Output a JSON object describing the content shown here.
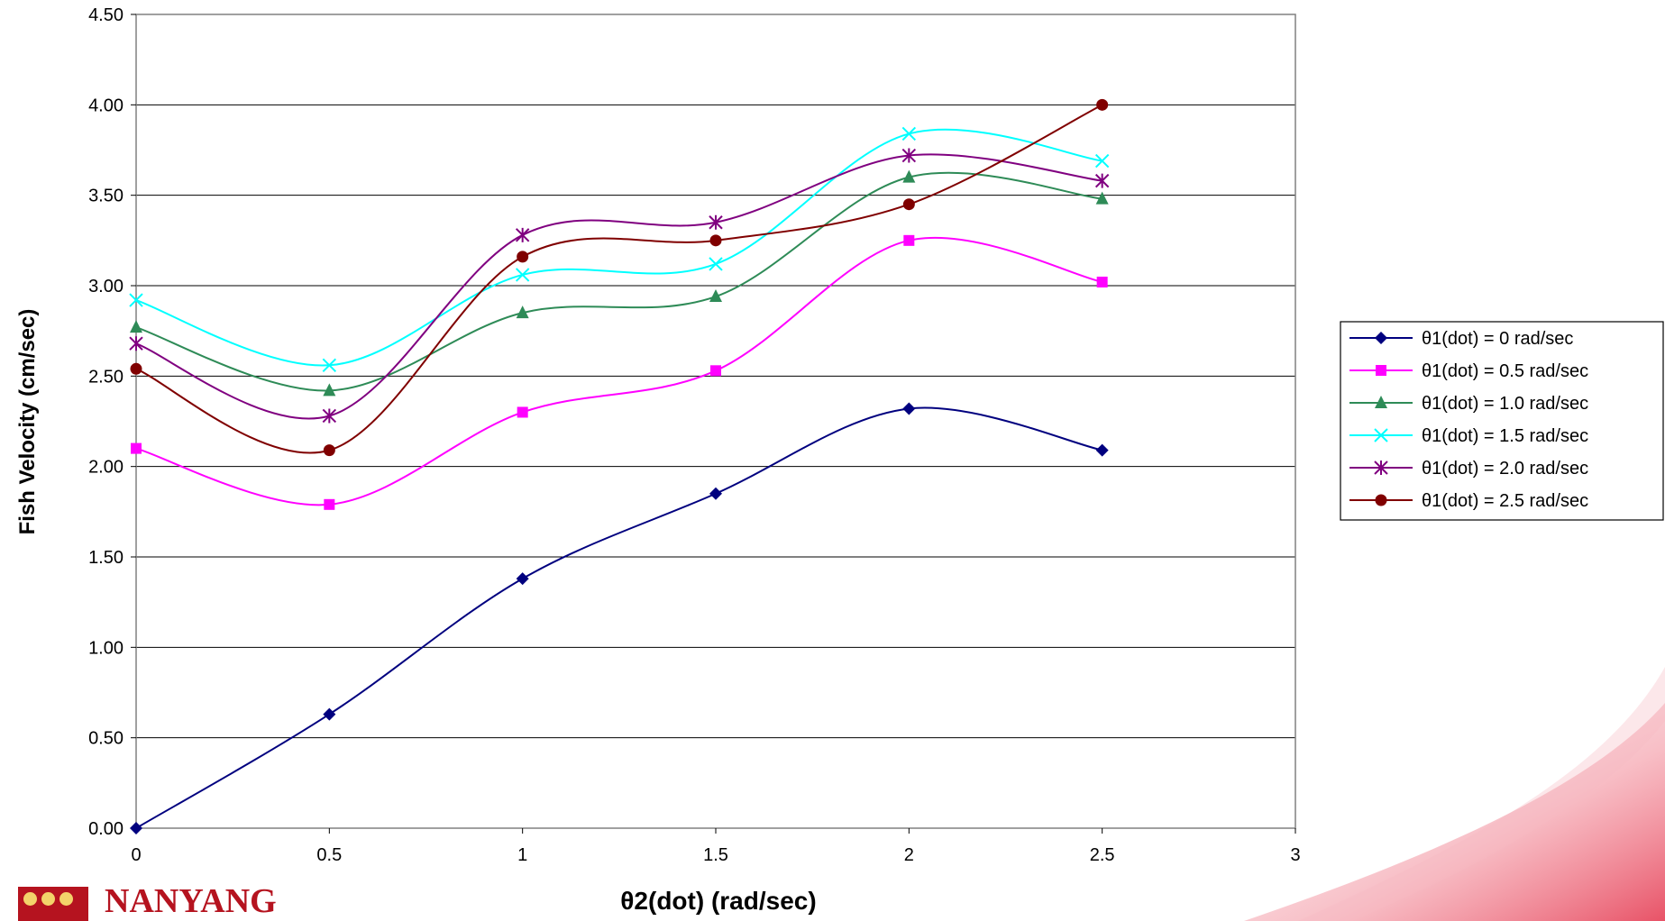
{
  "logo": {
    "text": "NANYANG"
  },
  "chart_data": {
    "type": "line",
    "title": "",
    "xlabel": "θ2(dot) (rad/sec)",
    "ylabel": "Fish Velocity (cm/sec)",
    "xlim": [
      0,
      3
    ],
    "ylim": [
      0,
      4.5
    ],
    "x_ticks": [
      "0",
      "0.5",
      "1",
      "1.5",
      "2",
      "2.5",
      "3"
    ],
    "y_ticks": [
      "0.00",
      "0.50",
      "1.00",
      "1.50",
      "2.00",
      "2.50",
      "3.00",
      "3.50",
      "4.00",
      "4.50"
    ],
    "grid": "horizontal",
    "legend_position": "right",
    "x": [
      0,
      0.5,
      1,
      1.5,
      2,
      2.5
    ],
    "series": [
      {
        "name": "θ1(dot) = 0 rad/sec",
        "color": "#00007f",
        "marker": "diamond",
        "values": [
          0.0,
          0.63,
          1.38,
          1.85,
          2.32,
          2.09
        ]
      },
      {
        "name": "θ1(dot) = 0.5 rad/sec",
        "color": "#ff00ff",
        "marker": "square",
        "values": [
          2.1,
          1.79,
          2.3,
          2.53,
          3.25,
          3.02
        ]
      },
      {
        "name": "θ1(dot) = 1.0 rad/sec",
        "color": "#2e8b57",
        "marker": "triangle",
        "values": [
          2.77,
          2.42,
          2.85,
          2.94,
          3.6,
          3.48
        ]
      },
      {
        "name": "θ1(dot) = 1.5 rad/sec",
        "color": "#00ffff",
        "marker": "x",
        "values": [
          2.92,
          2.56,
          3.06,
          3.12,
          3.84,
          3.69
        ]
      },
      {
        "name": "θ1(dot) = 2.0 rad/sec",
        "color": "#800080",
        "marker": "star",
        "values": [
          2.68,
          2.28,
          3.28,
          3.35,
          3.72,
          3.58
        ]
      },
      {
        "name": "θ1(dot) = 2.5 rad/sec",
        "color": "#800000",
        "marker": "circle",
        "values": [
          2.54,
          2.09,
          3.16,
          3.25,
          3.45,
          4.0
        ]
      }
    ]
  }
}
